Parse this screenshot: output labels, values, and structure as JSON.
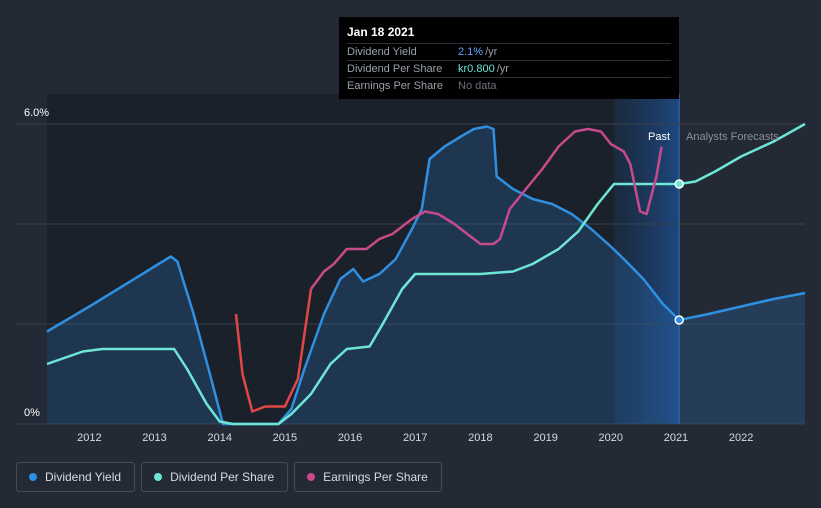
{
  "tooltip": {
    "date": "Jan 18 2021",
    "rows": [
      {
        "label": "Dividend Yield",
        "value": "2.1%",
        "unit": "/yr"
      },
      {
        "label": "Dividend Per Share",
        "value": "kr0.800",
        "unit": "/yr"
      },
      {
        "label": "Earnings Per Share",
        "value": "No data",
        "unit": ""
      }
    ]
  },
  "labels": {
    "past": "Past",
    "forecast": "Analysts Forecasts"
  },
  "legend": [
    {
      "label": "Dividend Yield",
      "color": "#2f8fe0"
    },
    {
      "label": "Dividend Per Share",
      "color": "#6ee6d6"
    },
    {
      "label": "Earnings Per Share",
      "color": "#c74a8a"
    }
  ],
  "chart_data": {
    "type": "line",
    "xlim": [
      2011.35,
      2022.98
    ],
    "ylim": [
      0,
      6
    ],
    "y_tick_labels": [
      {
        "value": 6,
        "label": "6.0%"
      },
      {
        "value": 0,
        "label": "0%"
      }
    ],
    "x_ticks": [
      2012,
      2013,
      2014,
      2015,
      2016,
      2017,
      2018,
      2019,
      2020,
      2021,
      2022
    ],
    "grid": true,
    "highlight_until": 2021.05,
    "series": [
      {
        "name": "Dividend Yield",
        "color": "#2f8fe0",
        "points": [
          [
            2011.35,
            1.85
          ],
          [
            2012.0,
            2.35
          ],
          [
            2012.5,
            2.75
          ],
          [
            2013.0,
            3.15
          ],
          [
            2013.25,
            3.35
          ],
          [
            2013.35,
            3.25
          ],
          [
            2013.6,
            2.2
          ],
          [
            2013.85,
            1.0
          ],
          [
            2014.05,
            0.0
          ],
          [
            2014.3,
            0.0
          ],
          [
            2014.6,
            0.0
          ],
          [
            2014.9,
            0.0
          ],
          [
            2015.1,
            0.3
          ],
          [
            2015.3,
            1.1
          ],
          [
            2015.6,
            2.2
          ],
          [
            2015.85,
            2.9
          ],
          [
            2016.05,
            3.1
          ],
          [
            2016.2,
            2.85
          ],
          [
            2016.45,
            3.0
          ],
          [
            2016.7,
            3.3
          ],
          [
            2016.95,
            3.9
          ],
          [
            2017.1,
            4.3
          ],
          [
            2017.22,
            5.3
          ],
          [
            2017.45,
            5.55
          ],
          [
            2017.7,
            5.75
          ],
          [
            2017.9,
            5.9
          ],
          [
            2018.1,
            5.95
          ],
          [
            2018.2,
            5.9
          ],
          [
            2018.25,
            4.95
          ],
          [
            2018.5,
            4.7
          ],
          [
            2018.8,
            4.5
          ],
          [
            2019.1,
            4.4
          ],
          [
            2019.4,
            4.2
          ],
          [
            2019.7,
            3.9
          ],
          [
            2020.0,
            3.55
          ],
          [
            2020.2,
            3.3
          ],
          [
            2020.5,
            2.9
          ],
          [
            2020.8,
            2.4
          ],
          [
            2021.05,
            2.08
          ],
          [
            2021.5,
            2.2
          ],
          [
            2022.0,
            2.35
          ],
          [
            2022.5,
            2.5
          ],
          [
            2022.98,
            2.62
          ]
        ]
      },
      {
        "name": "Dividend Per Share",
        "color": "#6ee6d6",
        "points": [
          [
            2011.35,
            1.2
          ],
          [
            2011.9,
            1.45
          ],
          [
            2012.2,
            1.5
          ],
          [
            2012.8,
            1.5
          ],
          [
            2013.3,
            1.5
          ],
          [
            2013.5,
            1.1
          ],
          [
            2013.8,
            0.4
          ],
          [
            2014.0,
            0.05
          ],
          [
            2014.2,
            0.0
          ],
          [
            2014.6,
            0.0
          ],
          [
            2014.9,
            0.0
          ],
          [
            2015.1,
            0.2
          ],
          [
            2015.4,
            0.6
          ],
          [
            2015.7,
            1.2
          ],
          [
            2015.95,
            1.5
          ],
          [
            2016.3,
            1.55
          ],
          [
            2016.5,
            2.0
          ],
          [
            2016.8,
            2.7
          ],
          [
            2017.0,
            3.0
          ],
          [
            2017.3,
            3.0
          ],
          [
            2018.0,
            3.0
          ],
          [
            2018.5,
            3.05
          ],
          [
            2018.8,
            3.2
          ],
          [
            2019.2,
            3.5
          ],
          [
            2019.5,
            3.85
          ],
          [
            2019.8,
            4.4
          ],
          [
            2020.05,
            4.8
          ],
          [
            2021.05,
            4.8
          ],
          [
            2021.3,
            4.85
          ],
          [
            2021.6,
            5.05
          ],
          [
            2022.0,
            5.35
          ],
          [
            2022.5,
            5.65
          ],
          [
            2022.98,
            6.0
          ]
        ]
      },
      {
        "name": "Earnings Per Share",
        "color": "#c74a8a",
        "negative_color": "#e04848",
        "points": [
          [
            2014.25,
            2.2
          ],
          [
            2014.35,
            1.0
          ],
          [
            2014.5,
            0.25
          ],
          [
            2014.7,
            0.35
          ],
          [
            2014.85,
            0.35
          ],
          [
            2015.0,
            0.35
          ],
          [
            2015.2,
            0.9
          ],
          [
            2015.4,
            2.7
          ],
          [
            2015.6,
            3.05
          ],
          [
            2015.75,
            3.2
          ],
          [
            2015.95,
            3.5
          ],
          [
            2016.25,
            3.5
          ],
          [
            2016.45,
            3.7
          ],
          [
            2016.65,
            3.8
          ],
          [
            2016.95,
            4.1
          ],
          [
            2017.15,
            4.25
          ],
          [
            2017.35,
            4.2
          ],
          [
            2017.6,
            4.0
          ],
          [
            2017.85,
            3.75
          ],
          [
            2018.0,
            3.6
          ],
          [
            2018.2,
            3.6
          ],
          [
            2018.3,
            3.7
          ],
          [
            2018.45,
            4.3
          ],
          [
            2018.7,
            4.7
          ],
          [
            2018.95,
            5.1
          ],
          [
            2019.2,
            5.55
          ],
          [
            2019.45,
            5.85
          ],
          [
            2019.65,
            5.9
          ],
          [
            2019.85,
            5.85
          ],
          [
            2020.0,
            5.6
          ],
          [
            2020.2,
            5.45
          ],
          [
            2020.3,
            5.2
          ],
          [
            2020.45,
            4.25
          ],
          [
            2020.55,
            4.2
          ],
          [
            2020.7,
            4.95
          ],
          [
            2020.78,
            5.55
          ]
        ]
      }
    ],
    "markers": [
      {
        "series": "Dividend Yield",
        "x": 2021.05,
        "y": 2.08
      },
      {
        "series": "Dividend Per Share",
        "x": 2021.05,
        "y": 4.8
      }
    ]
  }
}
